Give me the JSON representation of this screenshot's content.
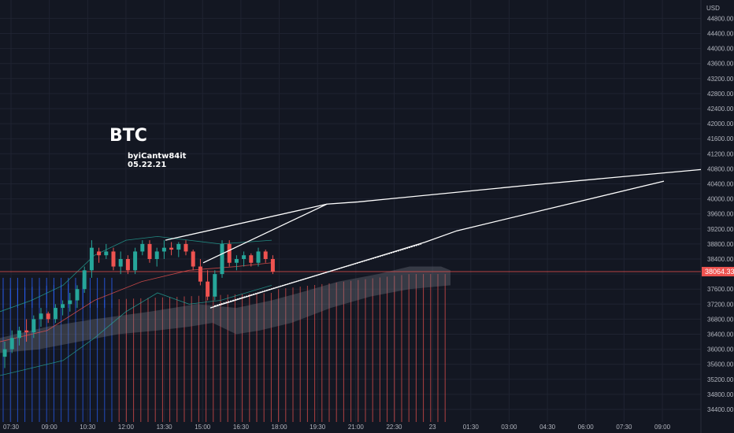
{
  "annotations": {
    "title": "BTC",
    "author": "byiCantw84it",
    "date": "05.22.21"
  },
  "colors": {
    "background": "#131722",
    "grid": "#1f2331",
    "up": "#26a69a",
    "down": "#ef5350",
    "price_line": "#ef5350",
    "cloud": "#787b86",
    "trendline": "#ffffff",
    "histogram": "#ef5350",
    "histogram_blue": "#2962ff"
  },
  "chart_data": {
    "type": "candlestick",
    "currency_label": "USD",
    "current_price_label": "38064.33",
    "current_price": 38064.33,
    "ylim": [
      34200,
      45200
    ],
    "y_ticks": [
      "44800.00",
      "44400.00",
      "44000.00",
      "43600.00",
      "43200.00",
      "42800.00",
      "42400.00",
      "42000.00",
      "41600.00",
      "41200.00",
      "40800.00",
      "40400.00",
      "40000.00",
      "39600.00",
      "39200.00",
      "38800.00",
      "38400.00",
      "38000.00",
      "37600.00",
      "37200.00",
      "36800.00",
      "36400.00",
      "36000.00",
      "35600.00",
      "35200.00",
      "34800.00",
      "34400.00"
    ],
    "x_ticks": [
      "07:30",
      "09:00",
      "10:30",
      "12:00",
      "13:30",
      "15:00",
      "16:30",
      "18:00",
      "19:30",
      "21:00",
      "22:30",
      "23",
      "01:30",
      "03:00",
      "04:30",
      "06:00",
      "07:30",
      "09:00"
    ],
    "candles": [
      {
        "o": 35800,
        "h": 36200,
        "l": 35500,
        "c": 36000
      },
      {
        "o": 36000,
        "h": 36500,
        "l": 35900,
        "c": 36300
      },
      {
        "o": 36300,
        "h": 36600,
        "l": 36100,
        "c": 36500
      },
      {
        "o": 36500,
        "h": 36800,
        "l": 36200,
        "c": 36450
      },
      {
        "o": 36450,
        "h": 36900,
        "l": 36300,
        "c": 36800
      },
      {
        "o": 36800,
        "h": 37100,
        "l": 36600,
        "c": 36950
      },
      {
        "o": 36950,
        "h": 37000,
        "l": 36700,
        "c": 36800
      },
      {
        "o": 36800,
        "h": 37200,
        "l": 36700,
        "c": 37100
      },
      {
        "o": 37100,
        "h": 37300,
        "l": 36900,
        "c": 37200
      },
      {
        "o": 37200,
        "h": 37500,
        "l": 37000,
        "c": 37300
      },
      {
        "o": 37300,
        "h": 37700,
        "l": 37100,
        "c": 37600
      },
      {
        "o": 37600,
        "h": 38200,
        "l": 37500,
        "c": 38100
      },
      {
        "o": 38100,
        "h": 38900,
        "l": 37900,
        "c": 38700
      },
      {
        "o": 38600,
        "h": 38700,
        "l": 38300,
        "c": 38500
      },
      {
        "o": 38500,
        "h": 38800,
        "l": 38400,
        "c": 38600
      },
      {
        "o": 38600,
        "h": 38700,
        "l": 38100,
        "c": 38200
      },
      {
        "o": 38200,
        "h": 38600,
        "l": 38000,
        "c": 38400
      },
      {
        "o": 38400,
        "h": 38500,
        "l": 38000,
        "c": 38100
      },
      {
        "o": 38100,
        "h": 38700,
        "l": 38000,
        "c": 38600
      },
      {
        "o": 38600,
        "h": 38900,
        "l": 38500,
        "c": 38800
      },
      {
        "o": 38800,
        "h": 38900,
        "l": 38300,
        "c": 38400
      },
      {
        "o": 38400,
        "h": 38700,
        "l": 38200,
        "c": 38600
      },
      {
        "o": 38600,
        "h": 38900,
        "l": 38400,
        "c": 38700
      },
      {
        "o": 38700,
        "h": 38850,
        "l": 38500,
        "c": 38650
      },
      {
        "o": 38650,
        "h": 38850,
        "l": 38450,
        "c": 38800
      },
      {
        "o": 38800,
        "h": 38900,
        "l": 38500,
        "c": 38600
      },
      {
        "o": 38600,
        "h": 38650,
        "l": 38100,
        "c": 38200
      },
      {
        "o": 38200,
        "h": 38400,
        "l": 37700,
        "c": 37800
      },
      {
        "o": 37800,
        "h": 38100,
        "l": 37300,
        "c": 37400
      },
      {
        "o": 37400,
        "h": 38100,
        "l": 37300,
        "c": 38000
      },
      {
        "o": 38000,
        "h": 38900,
        "l": 37900,
        "c": 38800
      },
      {
        "o": 38800,
        "h": 38900,
        "l": 38200,
        "c": 38300
      },
      {
        "o": 38300,
        "h": 38500,
        "l": 38100,
        "c": 38400
      },
      {
        "o": 38400,
        "h": 38600,
        "l": 38200,
        "c": 38500
      },
      {
        "o": 38500,
        "h": 38550,
        "l": 38200,
        "c": 38300
      },
      {
        "o": 38300,
        "h": 38700,
        "l": 38200,
        "c": 38600
      },
      {
        "o": 38600,
        "h": 38650,
        "l": 38300,
        "c": 38400
      },
      {
        "o": 38400,
        "h": 38500,
        "l": 38000,
        "c": 38064
      }
    ]
  }
}
